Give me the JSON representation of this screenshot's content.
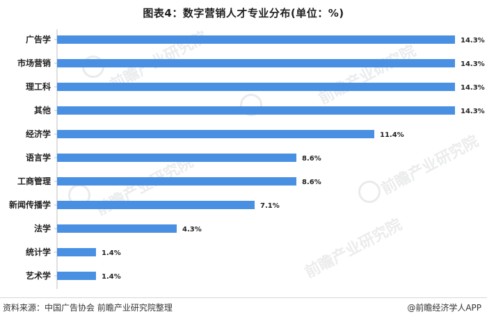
{
  "page": {
    "title": "图表4：数字营销人才专业分布(单位：%)",
    "source": "资料来源：中国广告协会 前瞻产业研究院整理",
    "brand": "@前瞻经济学人APP",
    "watermark": "前瞻产业研究院"
  },
  "colors": {
    "bar": "#4a90e2",
    "label": "#222222",
    "axis": "#bfbfbf"
  },
  "chart_data": {
    "type": "bar",
    "orientation": "horizontal",
    "title": "图表4：数字营销人才专业分布(单位：%)",
    "categories": [
      "广告学",
      "市场营销",
      "理工科",
      "其他",
      "经济学",
      "语言学",
      "工商管理",
      "新闻传播学",
      "法学",
      "统计学",
      "艺术学"
    ],
    "values": [
      14.3,
      14.3,
      14.3,
      14.3,
      11.4,
      8.6,
      8.6,
      7.1,
      4.3,
      1.4,
      1.4
    ],
    "value_labels": [
      "14.3%",
      "14.3%",
      "14.3%",
      "14.3%",
      "11.4%",
      "8.6%",
      "8.6%",
      "7.1%",
      "4.3%",
      "1.4%",
      "1.4%"
    ],
    "xlabel": "",
    "ylabel": "",
    "xlim": [
      0,
      14.3
    ],
    "grid": false,
    "legend": "none"
  }
}
